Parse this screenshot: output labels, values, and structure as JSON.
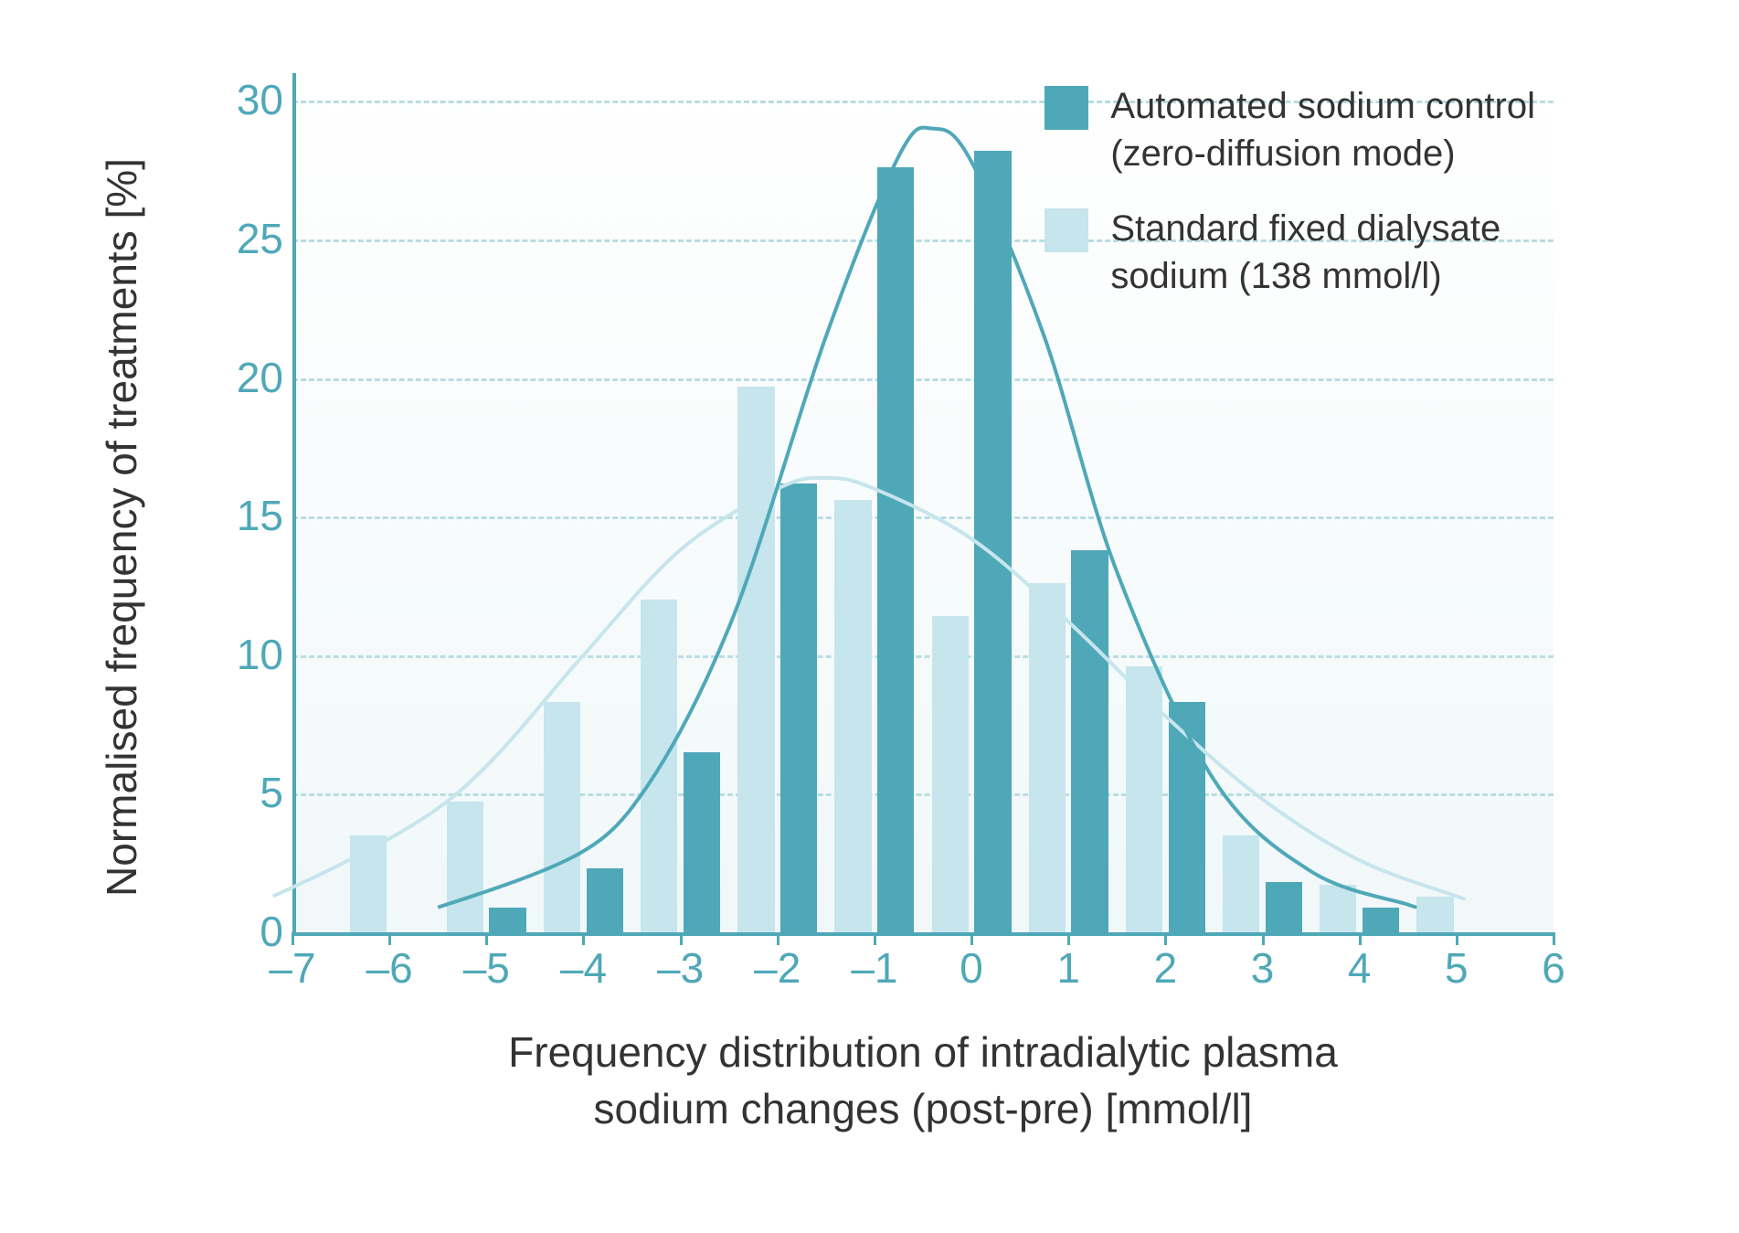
{
  "chart": {
    "type": "grouped-bar-with-curves",
    "y_axis": {
      "label": "Normalised frequency of treatments [%]",
      "label_fontsize": 46,
      "label_color": "#333333",
      "ticks": [
        0,
        5,
        10,
        15,
        20,
        25,
        30
      ],
      "tick_color": "#4fa8b8",
      "tick_fontsize": 46,
      "ylim": [
        0,
        31
      ]
    },
    "x_axis": {
      "label_line1": "Frequency distribution of intradialytic plasma",
      "label_line2": "sodium changes (post-pre) [mmol/l]",
      "label_fontsize": 46,
      "label_color": "#333333",
      "ticks": [
        -7,
        -6,
        -5,
        -4,
        -3,
        -2,
        -1,
        0,
        1,
        2,
        3,
        4,
        5,
        6
      ],
      "tick_labels": [
        "–7",
        "–6",
        "–5",
        "–4",
        "–3",
        "–2",
        "–1",
        "0",
        "1",
        "2",
        "3",
        "4",
        "5",
        "6"
      ],
      "tick_color": "#4fa8b8",
      "tick_fontsize": 46,
      "xlim": [
        -7,
        6
      ]
    },
    "grid": {
      "color": "#b9dde2",
      "dash": "6 8",
      "width": 3,
      "show_y": true
    },
    "axis_line_color": "#4fa8b8",
    "axis_line_width": 4,
    "background_color": "#ffffff",
    "plot_bg_gradient": [
      "#ffffff",
      "#f1f8f9"
    ],
    "series": [
      {
        "name": "standard",
        "legend_line1": "Standard fixed dialysate",
        "legend_line2": "sodium (138 mmol/l)",
        "color": "#c6e5ec",
        "bar_width": 0.38,
        "offset": -0.22,
        "data": {
          "-6": 3.5,
          "-5": 4.7,
          "-4": 8.3,
          "-3": 12.0,
          "-2": 19.7,
          "-1": 15.6,
          "0": 11.4,
          "1": 12.6,
          "2": 9.6,
          "3": 3.5,
          "4": 1.7,
          "5": 1.3
        },
        "curve": {
          "color": "#c6e5ec",
          "width": 4,
          "points": [
            {
              "x": -7.2,
              "y": 1.3
            },
            {
              "x": -6.0,
              "y": 3.0
            },
            {
              "x": -5.0,
              "y": 6.0
            },
            {
              "x": -4.0,
              "y": 10.0
            },
            {
              "x": -3.0,
              "y": 13.8
            },
            {
              "x": -2.0,
              "y": 16.0
            },
            {
              "x": -1.5,
              "y": 16.4
            },
            {
              "x": -1.0,
              "y": 16.0
            },
            {
              "x": 0.0,
              "y": 14.2
            },
            {
              "x": 1.0,
              "y": 11.2
            },
            {
              "x": 2.0,
              "y": 7.8
            },
            {
              "x": 3.0,
              "y": 4.8
            },
            {
              "x": 4.0,
              "y": 2.6
            },
            {
              "x": 5.0,
              "y": 1.3
            }
          ]
        }
      },
      {
        "name": "automated",
        "legend_line1": "Automated sodium control",
        "legend_line2": "(zero-diffusion mode)",
        "color": "#4fa8b8",
        "bar_width": 0.38,
        "offset": 0.22,
        "data": {
          "-5": 0.9,
          "-4": 2.3,
          "-3": 6.5,
          "-2": 16.2,
          "-1": 27.6,
          "0": 28.2,
          "1": 13.8,
          "2": 8.3,
          "3": 1.8,
          "4": 0.9
        },
        "curve": {
          "color": "#4fa8b8",
          "width": 4,
          "points": [
            {
              "x": -5.5,
              "y": 0.9
            },
            {
              "x": -4.5,
              "y": 1.8
            },
            {
              "x": -3.5,
              "y": 4.5
            },
            {
              "x": -2.5,
              "y": 11.0
            },
            {
              "x": -1.5,
              "y": 21.5
            },
            {
              "x": -0.75,
              "y": 28.0
            },
            {
              "x": -0.4,
              "y": 29.0
            },
            {
              "x": 0.0,
              "y": 27.8
            },
            {
              "x": 0.75,
              "y": 21.5
            },
            {
              "x": 1.5,
              "y": 13.0
            },
            {
              "x": 2.5,
              "y": 5.5
            },
            {
              "x": 3.5,
              "y": 2.2
            },
            {
              "x": 4.5,
              "y": 1.0
            }
          ]
        }
      }
    ],
    "legend": {
      "position": "top-right",
      "fontsize": 40,
      "text_color": "#333333"
    }
  }
}
